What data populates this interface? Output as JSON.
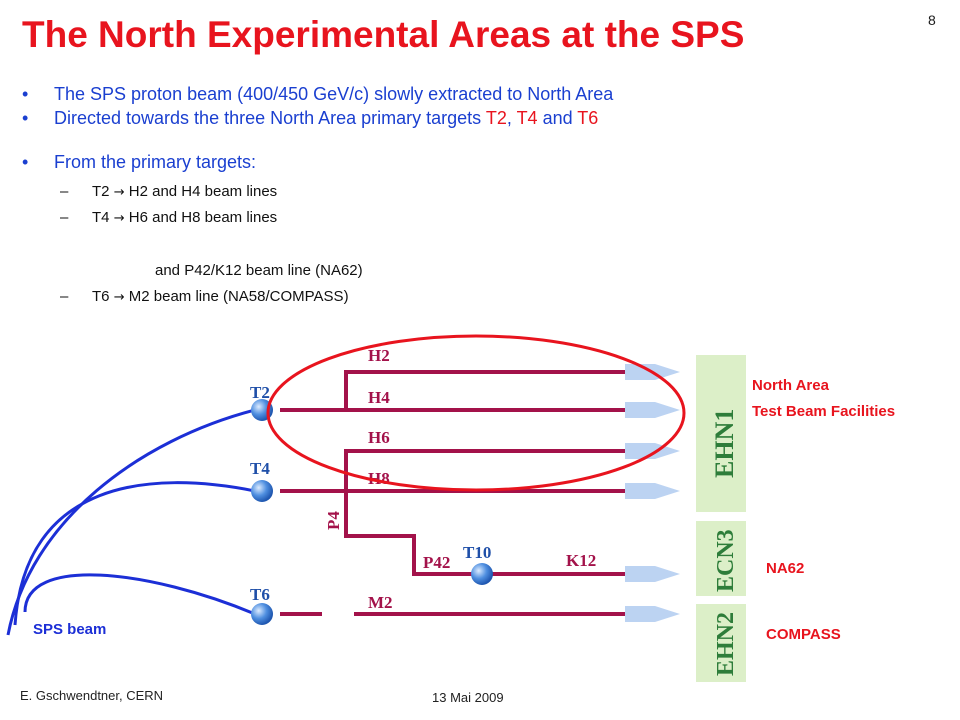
{
  "title": "The North Experimental Areas at the SPS",
  "slide_number": "8",
  "bullets": [
    {
      "text": "The SPS proton beam (400/450 GeV/c) slowly extracted to North Area"
    },
    {
      "pre": "Directed towards the three North Area primary targets ",
      "t2": "T2",
      "sep1": ", ",
      "t4": "T4",
      "sep2": " and ",
      "t6": "T6"
    },
    {
      "text": "From the primary targets:"
    }
  ],
  "sub_items": [
    {
      "from": "T2",
      "arrow": "→",
      "to": "H2 and H4 beam lines"
    },
    {
      "from": "T4",
      "arrow": "→",
      "to": "H6 and H8 beam lines"
    },
    {
      "cont": "and P42/K12 beam line (NA62)"
    },
    {
      "from": "T6",
      "arrow": "→",
      "to": "M2 beam line (NA58/COMPASS)"
    }
  ],
  "diagram": {
    "targets": [
      "T2",
      "T4",
      "T6",
      "T10"
    ],
    "beam_lines": [
      "H2",
      "H4",
      "H6",
      "H8",
      "P4",
      "P42",
      "K12",
      "M2"
    ],
    "halls": [
      "EHN1",
      "ECN3",
      "EHN2"
    ],
    "sps_beam_label": "SPS beam",
    "area_labels": {
      "north_area_line1": "North Area",
      "north_area_line2": "Test Beam Facilities",
      "na62": "NA62",
      "compass": "COMPASS"
    },
    "colors": {
      "beam_line": "#a3124a",
      "sps_beam": "#1c2fd6",
      "highlight_ellipse": "#e8141e",
      "hall_fill": "#dcefc8",
      "hall_text": "#2e7d3a",
      "target": "#3b7fd4",
      "arrow_head": "#bcd3f2"
    }
  },
  "footer": {
    "author": "E. Gschwendtner, CERN",
    "date": "13 Mai 2009"
  }
}
